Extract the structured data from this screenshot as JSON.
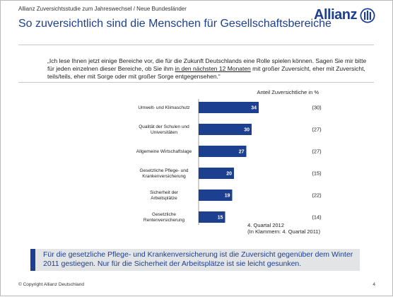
{
  "header": {
    "subtitle": "Allianz Zuversichtsstudie zum Jahreswechsel / Neue Bundesländer",
    "title": "So zuversichtlich sind die Menschen für Gesellschaftsbereiche",
    "logo_text": "Allianz",
    "logo_icon": "allianz-eagle-logo-icon"
  },
  "question": {
    "part1": "„Ich lese Ihnen jetzt einige Bereiche vor, die für die Zukunft Deutschlands eine Rolle spielen können. Sagen Sie mir bitte für jeden einzelnen dieser Bereiche, ob Sie ihm ",
    "underlined": "in den nächsten 12 Monaten",
    "part2": " mit großer Zuversicht, eher mit Zuversicht, teils/teils, eher mit Sorge oder mit großer Sorge entgegensehen.“"
  },
  "chart_data": {
    "type": "bar",
    "orientation": "horizontal",
    "title": "Anteil Zuversichtliche in %",
    "categories": [
      [
        "Umwelt- und Klimaschutz"
      ],
      [
        "Qualität der Schulen und",
        "Universitäten"
      ],
      [
        "Allgemeine Wirtschaftslage"
      ],
      [
        "Gesetzliche Pflege- und",
        "Krankenversicherung"
      ],
      [
        "Sicherheit der",
        "Arbeitsplätze"
      ],
      [
        "Gesetzliche",
        "Rentenversicherung"
      ]
    ],
    "series": [
      {
        "name": "4. Quartal 2012",
        "values": [
          34,
          30,
          27,
          20,
          19,
          15
        ]
      },
      {
        "name": "4. Quartal 2011",
        "values": [
          30,
          27,
          27,
          15,
          22,
          14
        ]
      }
    ],
    "previous_labels": [
      "(30)",
      "(27)",
      "(27)",
      "(15)",
      "(22)",
      "(14)"
    ],
    "xlim": [
      0,
      40
    ],
    "bar_color": "#1d3f8f",
    "notes": [
      "4. Quartal 2012",
      "(In Klammern: 4. Quartal 2011)"
    ]
  },
  "banner": {
    "text": "Für die gesetzliche Pflege- und Krankenversicherung ist die Zuversicht gegenüber dem Winter 2011 gestiegen. Nur für die Sicherheit der Arbeitsplätze ist sie leicht gesunken.",
    "accent_color": "#1d3f8f"
  },
  "footer": {
    "copyright": "© Copyright Allianz Deutschland",
    "page": "4"
  }
}
